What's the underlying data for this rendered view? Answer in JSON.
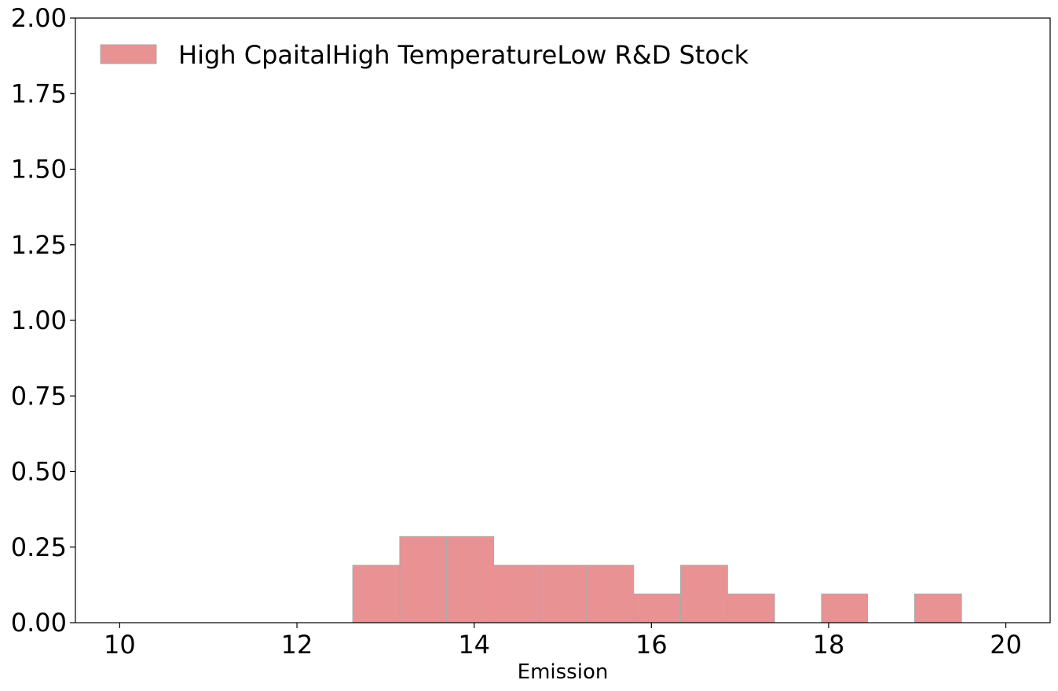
{
  "chart_data": {
    "type": "bar",
    "histogram": true,
    "xlabel": "Emission",
    "ylabel": "",
    "title": "",
    "xlim": [
      9.5,
      20.5
    ],
    "ylim": [
      0,
      2.0
    ],
    "x_ticks": [
      10,
      12,
      14,
      16,
      18,
      20
    ],
    "x_tick_labels": [
      "10",
      "12",
      "14",
      "16",
      "18",
      "20"
    ],
    "y_ticks": [
      0,
      0.25,
      0.5,
      0.75,
      1.0,
      1.25,
      1.5,
      1.75,
      2.0
    ],
    "y_tick_labels": [
      "0.00",
      "0.25",
      "0.50",
      "0.75",
      "1.00",
      "1.25",
      "1.50",
      "1.75",
      "2.00"
    ],
    "grid": false,
    "legend_position": "top-left",
    "series": [
      {
        "name": "High CpaitalHigh TemperatureLow R&D Stock",
        "color": "#e89294",
        "edge_color": "#aaaaaa",
        "bins": [
          {
            "x0": 12.63,
            "x1": 13.16,
            "value": 0.19
          },
          {
            "x0": 13.16,
            "x1": 13.69,
            "value": 0.285
          },
          {
            "x0": 13.69,
            "x1": 14.22,
            "value": 0.285
          },
          {
            "x0": 14.22,
            "x1": 14.74,
            "value": 0.19
          },
          {
            "x0": 14.74,
            "x1": 15.27,
            "value": 0.19
          },
          {
            "x0": 15.27,
            "x1": 15.8,
            "value": 0.19
          },
          {
            "x0": 15.8,
            "x1": 16.33,
            "value": 0.095
          },
          {
            "x0": 16.33,
            "x1": 16.86,
            "value": 0.19
          },
          {
            "x0": 16.86,
            "x1": 17.39,
            "value": 0.095
          },
          {
            "x0": 17.92,
            "x1": 18.44,
            "value": 0.095
          },
          {
            "x0": 18.97,
            "x1": 19.5,
            "value": 0.095
          }
        ]
      }
    ]
  }
}
